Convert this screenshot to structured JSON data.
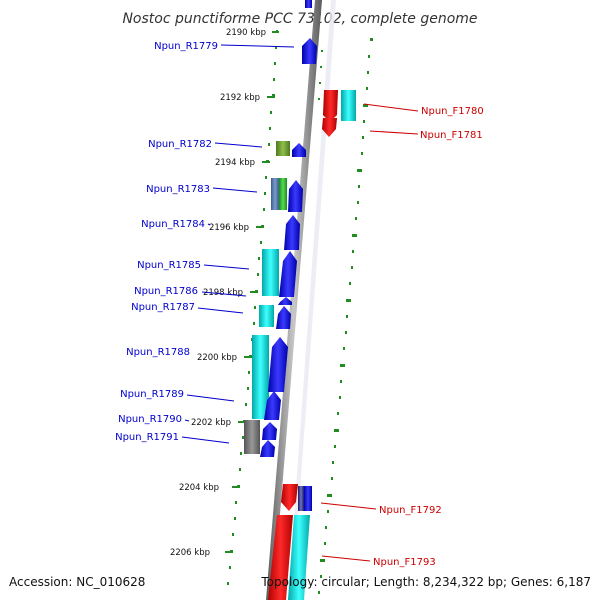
{
  "title": "Nostoc punctiforme PCC 73102, complete genome",
  "footer": {
    "accession": "Accession: NC_010628",
    "summary": "Topology: circular; Length: 8,234,322 bp; Genes: 6,187"
  },
  "colors": {
    "reverse_label": "#0000cc",
    "forward_label": "#cc0000",
    "backbone": "#888888",
    "tick_dots": "#228b22"
  },
  "kbp_labels": [
    "2190 kbp",
    "2192 kbp",
    "2194 kbp",
    "2196 kbp",
    "2198 kbp",
    "2200 kbp",
    "2202 kbp",
    "2204 kbp",
    "2206 kbp"
  ],
  "reverse_genes": [
    "Npun_R1779",
    "Npun_R1782",
    "Npun_R1783",
    "Npun_R1784",
    "Npun_R1785",
    "Npun_R1786",
    "Npun_R1787",
    "Npun_R1788",
    "Npun_R1789",
    "Npun_R1790",
    "Npun_R1791"
  ],
  "forward_genes": [
    "Npun_F1780",
    "Npun_F1781",
    "Npun_F1792",
    "Npun_F1793"
  ]
}
